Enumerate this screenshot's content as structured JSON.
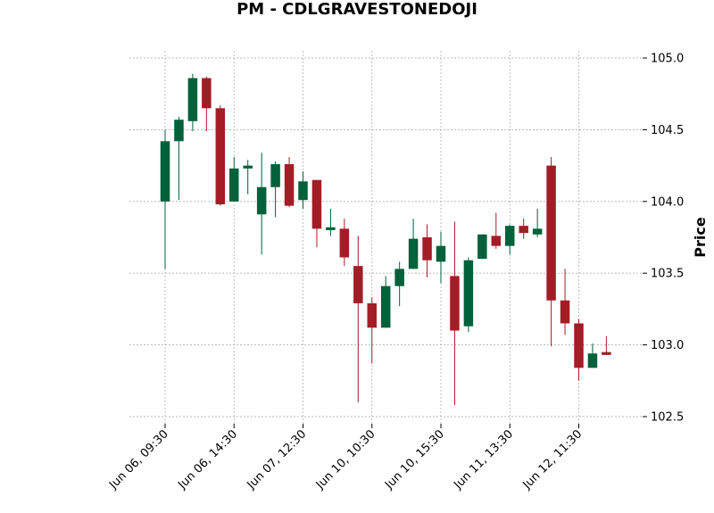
{
  "chart_data": {
    "type": "candlestick",
    "title": "PM - CDLGRAVESTONEDOJI",
    "xlabel": "",
    "ylabel": "Price",
    "ylim": [
      102.45,
      105.05
    ],
    "yticks": [
      102.5,
      103.0,
      103.5,
      104.0,
      104.5,
      105.0
    ],
    "ytick_labels": [
      "102.5",
      "103.0",
      "103.5",
      "104.0",
      "104.5",
      "105.0"
    ],
    "xtick_labels": [
      {
        "label": "Jun 06, 09:30",
        "index": 0
      },
      {
        "label": "Jun 06, 14:30",
        "index": 5
      },
      {
        "label": "Jun 07, 12:30",
        "index": 10
      },
      {
        "label": "Jun 10, 10:30",
        "index": 15
      },
      {
        "label": "Jun 10, 15:30",
        "index": 20
      },
      {
        "label": "Jun 11, 13:30",
        "index": 25
      },
      {
        "label": "Jun 12, 11:30",
        "index": 30
      }
    ],
    "grid": true,
    "colors": {
      "up": "#00613a",
      "down": "#a31d26",
      "grid": "#b0b0b0"
    },
    "candles": [
      {
        "open": 104.0,
        "high": 104.5,
        "low": 103.53,
        "close": 104.42
      },
      {
        "open": 104.42,
        "high": 104.59,
        "low": 104.01,
        "close": 104.57
      },
      {
        "open": 104.56,
        "high": 104.89,
        "low": 104.49,
        "close": 104.86
      },
      {
        "open": 104.86,
        "high": 104.87,
        "low": 104.49,
        "close": 104.65
      },
      {
        "open": 104.65,
        "high": 104.67,
        "low": 103.97,
        "close": 103.98
      },
      {
        "open": 104.0,
        "high": 104.31,
        "low": 104.0,
        "close": 104.23
      },
      {
        "open": 104.23,
        "high": 104.29,
        "low": 104.05,
        "close": 104.25
      },
      {
        "open": 103.91,
        "high": 104.34,
        "low": 103.63,
        "close": 104.1
      },
      {
        "open": 104.1,
        "high": 104.28,
        "low": 103.89,
        "close": 104.26
      },
      {
        "open": 104.26,
        "high": 104.31,
        "low": 103.96,
        "close": 103.97
      },
      {
        "open": 104.01,
        "high": 104.21,
        "low": 103.95,
        "close": 104.14
      },
      {
        "open": 104.15,
        "high": 104.15,
        "low": 103.68,
        "close": 103.81
      },
      {
        "open": 103.8,
        "high": 103.95,
        "low": 103.76,
        "close": 103.82
      },
      {
        "open": 103.81,
        "high": 103.88,
        "low": 103.55,
        "close": 103.61
      },
      {
        "open": 103.55,
        "high": 103.76,
        "low": 102.6,
        "close": 103.29
      },
      {
        "open": 103.29,
        "high": 103.33,
        "low": 102.87,
        "close": 103.12
      },
      {
        "open": 103.12,
        "high": 103.48,
        "low": 103.12,
        "close": 103.41
      },
      {
        "open": 103.41,
        "high": 103.58,
        "low": 103.27,
        "close": 103.53
      },
      {
        "open": 103.53,
        "high": 103.88,
        "low": 103.53,
        "close": 103.74
      },
      {
        "open": 103.75,
        "high": 103.84,
        "low": 103.47,
        "close": 103.59
      },
      {
        "open": 103.58,
        "high": 103.79,
        "low": 103.43,
        "close": 103.69
      },
      {
        "open": 103.48,
        "high": 103.86,
        "low": 102.58,
        "close": 103.1
      },
      {
        "open": 103.13,
        "high": 103.61,
        "low": 103.09,
        "close": 103.59
      },
      {
        "open": 103.6,
        "high": 103.77,
        "low": 103.6,
        "close": 103.77
      },
      {
        "open": 103.76,
        "high": 103.92,
        "low": 103.67,
        "close": 103.69
      },
      {
        "open": 103.69,
        "high": 103.84,
        "low": 103.63,
        "close": 103.83
      },
      {
        "open": 103.83,
        "high": 103.88,
        "low": 103.74,
        "close": 103.78
      },
      {
        "open": 103.77,
        "high": 103.95,
        "low": 103.75,
        "close": 103.81
      },
      {
        "open": 104.25,
        "high": 104.31,
        "low": 102.99,
        "close": 103.31
      },
      {
        "open": 103.31,
        "high": 103.53,
        "low": 103.07,
        "close": 103.15
      },
      {
        "open": 103.15,
        "high": 103.18,
        "low": 102.75,
        "close": 102.84
      },
      {
        "open": 102.84,
        "high": 103.01,
        "low": 102.84,
        "close": 102.94
      },
      {
        "open": 102.95,
        "high": 103.06,
        "low": 102.93,
        "close": 102.93
      }
    ]
  }
}
